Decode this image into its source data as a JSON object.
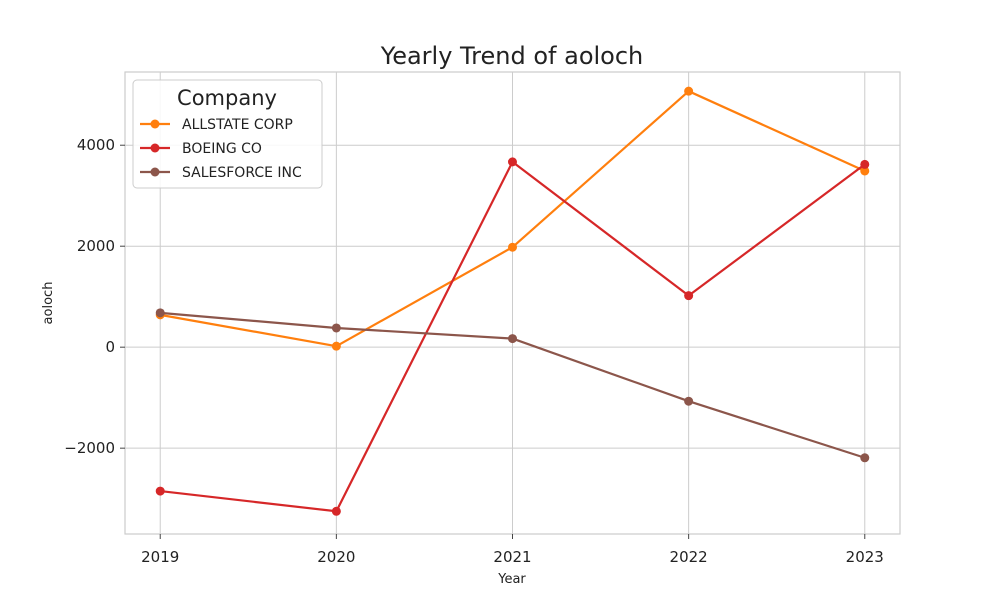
{
  "chart_data": {
    "type": "line",
    "title": "Yearly Trend of aoloch",
    "xlabel": "Year",
    "ylabel": "aoloch",
    "x": [
      2019,
      2020,
      2021,
      2022,
      2023
    ],
    "x_tick_labels": [
      "2019",
      "2020",
      "2021",
      "2022",
      "2023"
    ],
    "y_ticks": [
      -2000,
      0,
      2000,
      4000
    ],
    "y_tick_labels": [
      "−2000",
      "0",
      "2000",
      "4000"
    ],
    "ylim": [
      -3700,
      5450
    ],
    "xlim": [
      2018.8,
      2023.2
    ],
    "grid": true,
    "legend": {
      "title": "Company",
      "placement": "top-left"
    },
    "series": [
      {
        "name": "ALLSTATE CORP",
        "color": "#ff7f0e",
        "values": [
          640,
          20,
          1980,
          5070,
          3490
        ]
      },
      {
        "name": "BOEING CO",
        "color": "#d62728",
        "values": [
          -2850,
          -3250,
          3670,
          1020,
          3620
        ]
      },
      {
        "name": "SALESFORCE INC",
        "color": "#8c564b",
        "values": [
          680,
          380,
          170,
          -1070,
          -2190
        ]
      }
    ]
  }
}
